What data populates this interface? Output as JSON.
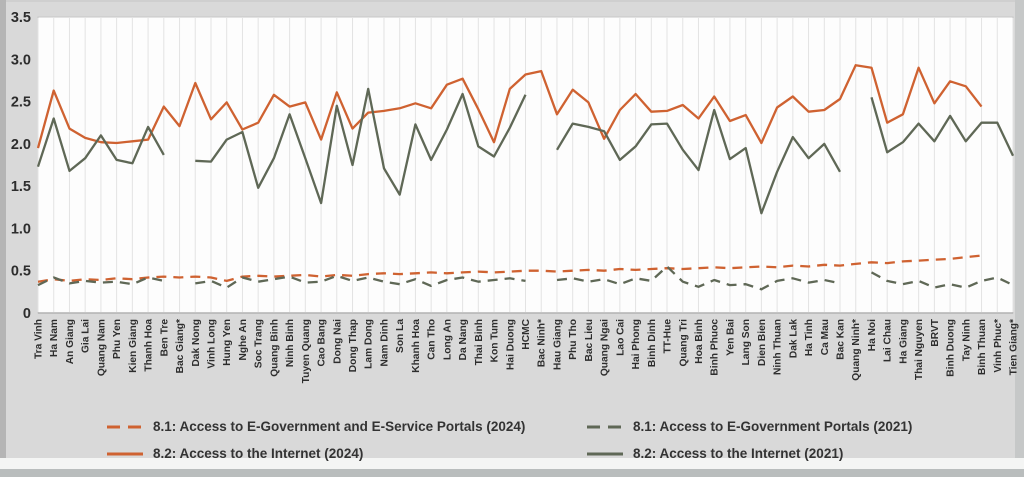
{
  "figure": {
    "kind": "line chart figure",
    "background": "#d9d9d9",
    "plot_background": "#fdfdfd",
    "gridline_color": "#e3e3e3",
    "axis_text_color": "#2d2d2d"
  },
  "chart_data": {
    "type": "line",
    "title": "",
    "xlabel": "",
    "ylabel": "",
    "ylim": [
      0,
      3.5
    ],
    "grid": "vertical-only",
    "legend_position": "bottom-two-columns",
    "yticks": [
      {
        "label": "0",
        "value": 0
      },
      {
        "label": "0.5",
        "value": 0.5
      },
      {
        "label": "1.0",
        "value": 1.0
      },
      {
        "label": "1.5",
        "value": 1.5
      },
      {
        "label": "2.0",
        "value": 2.0
      },
      {
        "label": "2.5",
        "value": 2.5
      },
      {
        "label": "3.0",
        "value": 3.0
      },
      {
        "label": "3.5",
        "value": 3.5
      }
    ],
    "categories": [
      "Tra Vinh",
      "Ha Nam",
      "An Giang",
      "Gia Lai",
      "Quang Nam",
      "Phu Yen",
      "Kien Giang",
      "Thanh Hoa",
      "Ben Tre",
      "Bac Giang*",
      "Dak Nong",
      "Vinh Long",
      "Hung Yen",
      "Nghe An",
      "Soc Trang",
      "Quang Binh",
      "Ninh Binh",
      "Tuyen Quang",
      "Cao Bang",
      "Dong Nai",
      "Dong Thap",
      "Lam Dong",
      "Nam Dinh",
      "Son La",
      "Khanh Hoa",
      "Can Tho",
      "Long An",
      "Da Nang",
      "Thai Binh",
      "Kon Tum",
      "Hai Duong",
      "HCMC",
      "Bac Ninh*",
      "Hau Giang",
      "Phu Tho",
      "Bac Lieu",
      "Quang Ngai",
      "Lao Cai",
      "Hai Phong",
      "Binh Dinh",
      "TT-Hue",
      "Quang Tri",
      "Hoa Binh",
      "Binh Phuoc",
      "Yen Bai",
      "Lang Son",
      "Dien Bien",
      "Ninh Thuan",
      "Dak Lak",
      "Ha Tinh",
      "Ca Mau",
      "Bac Kan",
      "Quang Ninh*",
      "Ha Noi",
      "Lai Chau",
      "Ha Giang",
      "Thai Nguyen",
      "BRVT",
      "Binh Duong",
      "Tay Ninh",
      "Binh Thuan",
      "Vinh Phuc*",
      "Tien Giang*"
    ],
    "series": [
      {
        "key": "egov-portals-2024",
        "name": "8.1: Access to E-Government and E-Service Portals (2024)",
        "color": "#cf6231",
        "dashed": true,
        "values": [
          0.37,
          0.4,
          0.38,
          0.4,
          0.39,
          0.41,
          0.4,
          0.42,
          0.43,
          0.42,
          0.43,
          0.42,
          0.38,
          0.43,
          0.44,
          0.43,
          0.44,
          0.45,
          0.43,
          0.45,
          0.44,
          0.46,
          0.47,
          0.46,
          0.47,
          0.48,
          0.47,
          0.48,
          0.49,
          0.48,
          0.49,
          0.5,
          0.5,
          0.49,
          0.5,
          0.51,
          0.5,
          0.52,
          0.51,
          0.52,
          0.53,
          0.52,
          0.53,
          0.54,
          0.53,
          0.54,
          0.55,
          0.54,
          0.56,
          0.55,
          0.57,
          0.56,
          0.58,
          0.6,
          0.59,
          0.61,
          0.62,
          0.63,
          0.64,
          0.66,
          0.68,
          null,
          null
        ]
      },
      {
        "key": "egov-portals-2021",
        "name": "8.1: Access to E-Government Portals (2021)",
        "color": "#5f6856",
        "dashed": true,
        "values": [
          0.33,
          0.42,
          0.35,
          0.38,
          0.36,
          0.37,
          0.34,
          0.42,
          0.38,
          null,
          0.35,
          0.38,
          0.3,
          0.42,
          0.37,
          0.4,
          0.43,
          0.36,
          0.37,
          0.44,
          0.38,
          0.42,
          0.37,
          0.34,
          0.4,
          0.32,
          0.39,
          0.42,
          0.37,
          0.39,
          0.41,
          0.38,
          null,
          0.39,
          0.41,
          0.37,
          0.4,
          0.34,
          0.41,
          0.38,
          0.55,
          0.37,
          0.31,
          0.39,
          0.33,
          0.34,
          0.28,
          0.38,
          0.41,
          0.36,
          0.39,
          0.35,
          null,
          0.48,
          0.38,
          0.34,
          0.38,
          0.3,
          0.34,
          0.3,
          0.38,
          0.42,
          0.33
        ]
      },
      {
        "key": "internet-2024",
        "name": "8.2: Access to the Internet (2024)",
        "color": "#cf6231",
        "dashed": false,
        "values": [
          1.95,
          2.63,
          2.18,
          2.07,
          2.02,
          2.01,
          2.03,
          2.05,
          2.44,
          2.21,
          2.72,
          2.29,
          2.49,
          2.17,
          2.25,
          2.58,
          2.44,
          2.49,
          2.05,
          2.61,
          2.18,
          2.37,
          2.39,
          2.42,
          2.48,
          2.42,
          2.7,
          2.77,
          2.41,
          2.02,
          2.65,
          2.82,
          2.86,
          2.35,
          2.64,
          2.49,
          2.06,
          2.4,
          2.59,
          2.38,
          2.39,
          2.46,
          2.3,
          2.56,
          2.27,
          2.34,
          2.01,
          2.43,
          2.56,
          2.38,
          2.4,
          2.53,
          2.93,
          2.9,
          2.25,
          2.35,
          2.9,
          2.48,
          2.74,
          2.68,
          2.44,
          null,
          null
        ]
      },
      {
        "key": "internet-2021",
        "name": "8.2: Access to the Internet (2021)",
        "color": "#5f6856",
        "dashed": false,
        "values": [
          1.73,
          2.3,
          1.68,
          1.83,
          2.1,
          1.81,
          1.77,
          2.2,
          1.87,
          null,
          1.8,
          1.79,
          2.05,
          2.14,
          1.48,
          1.83,
          2.35,
          1.83,
          1.3,
          2.45,
          1.75,
          2.65,
          1.71,
          1.4,
          2.23,
          1.81,
          2.17,
          2.59,
          1.97,
          1.85,
          2.19,
          2.58,
          null,
          1.93,
          2.24,
          2.2,
          2.15,
          1.81,
          1.97,
          2.23,
          2.24,
          1.93,
          1.69,
          2.4,
          1.82,
          1.95,
          1.18,
          1.67,
          2.08,
          1.83,
          2.0,
          1.67,
          null,
          2.55,
          1.9,
          2.02,
          2.24,
          2.03,
          2.33,
          2.03,
          2.25,
          2.25,
          1.86
        ]
      }
    ],
    "legend_columns": {
      "left": [
        "egov-portals-2024",
        "internet-2024"
      ],
      "right": [
        "egov-portals-2021",
        "internet-2021"
      ]
    }
  }
}
